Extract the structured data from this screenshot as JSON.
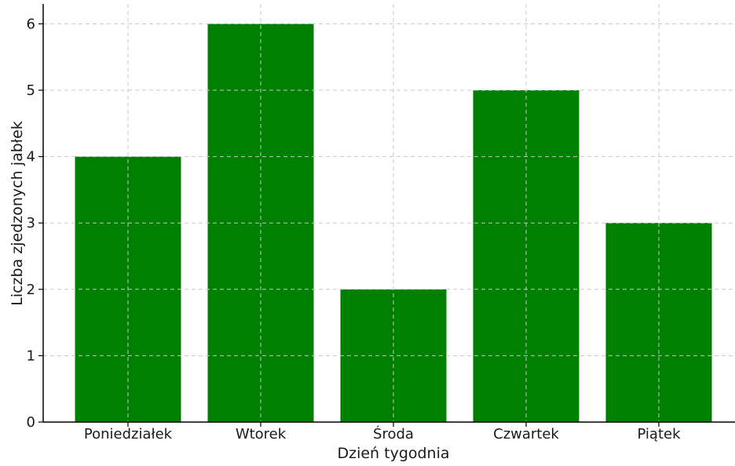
{
  "chart_data": {
    "type": "bar",
    "title": "",
    "xlabel": "Dzień tygodnia",
    "ylabel": "Liczba zjedzonych jabłek",
    "categories": [
      "Poniedziałek",
      "Wtorek",
      "Środa",
      "Czwartek",
      "Piątek"
    ],
    "values": [
      4,
      6,
      2,
      5,
      3
    ],
    "ylim": [
      0,
      6.3
    ],
    "yticks": [
      0,
      1,
      2,
      3,
      4,
      5,
      6
    ],
    "grid": true,
    "bar_color": "#008000",
    "legend": "none"
  }
}
